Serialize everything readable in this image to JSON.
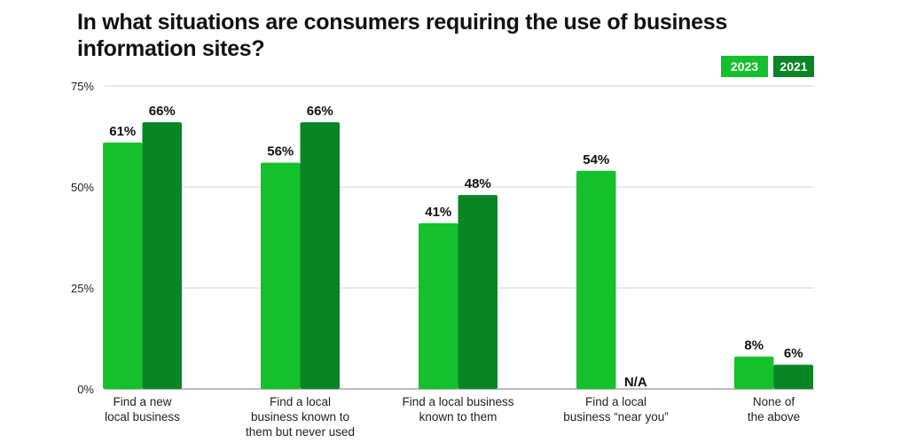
{
  "chart_data": {
    "type": "bar",
    "title": "In what situations are consumers requiring the use of business information sites?",
    "xlabel": "",
    "ylabel": "",
    "ylim": [
      0,
      75
    ],
    "yticks": [
      "0%",
      "25%",
      "50%",
      "75%"
    ],
    "ytick_values": [
      0,
      25,
      50,
      75
    ],
    "grid": true,
    "legend_position": "top-right",
    "categories": [
      [
        "Find a new",
        "local business"
      ],
      [
        "Find a local",
        "business known to",
        "them but never used"
      ],
      [
        "Find a local business",
        "known to them"
      ],
      [
        "Find a local",
        "business “near you”"
      ],
      [
        "None of",
        "the above"
      ]
    ],
    "series": [
      {
        "name": "2023",
        "color": "#14c02c",
        "values": [
          61,
          56,
          41,
          54,
          8
        ],
        "labels": [
          "61%",
          "56%",
          "41%",
          "54%",
          "8%"
        ]
      },
      {
        "name": "2021",
        "color": "#0a8526",
        "values": [
          66,
          66,
          48,
          null,
          6
        ],
        "labels": [
          "66%",
          "66%",
          "48%",
          "N/A",
          "6%"
        ]
      }
    ]
  }
}
